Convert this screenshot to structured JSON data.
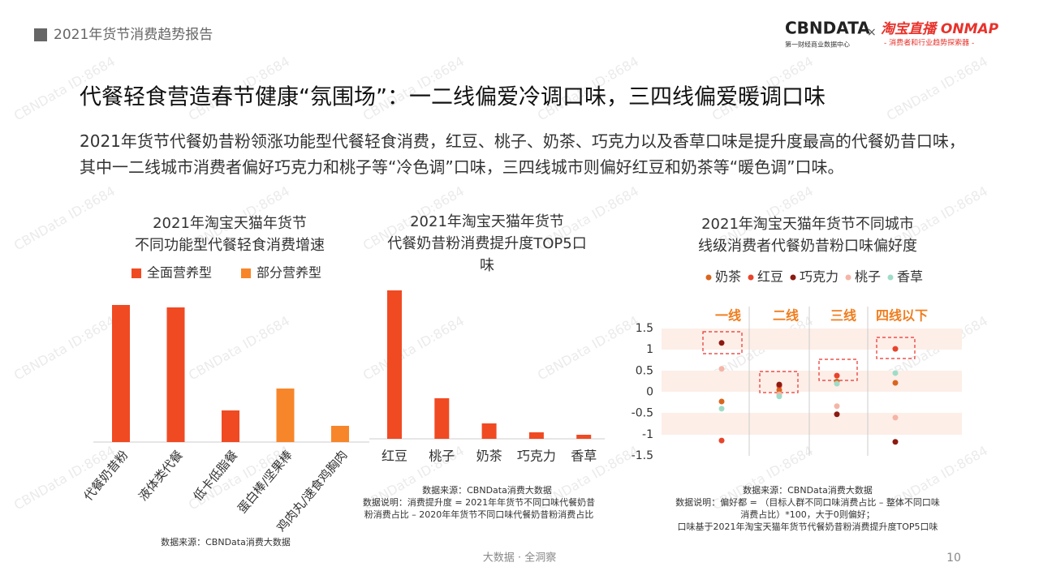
{
  "header": {
    "title": "2021年货节消费趋势报告",
    "logo_left": "CBNDATA",
    "logo_left_sub": "第一财经商业数据中心",
    "logo_sep": "×",
    "logo_right": "淘宝直播 ONMAP",
    "logo_right_sub": "- 消费者和行业趋势探索器 -"
  },
  "headline": "代餐轻食营造春节健康“氛围场”：一二线偏爱冷调口味，三四线偏爱暖调口味",
  "summary": "2021年货节代餐奶昔粉领涨功能型代餐轻食消费，红豆、桃子、奶茶、巧克力以及香草口味是提升度最高的代餐奶昔口味，其中一二线城市消费者偏好巧克力和桃子等“冷色调”口味，三四线城市则偏好红豆和奶茶等“暖色调”口味。",
  "watermark": "CBNData ID:8684",
  "footer": "大数据 · 全洞察",
  "page_number": "10",
  "chart_data": [
    {
      "type": "bar",
      "title": [
        "2021年淘宝天猫年货节",
        "不同功能型代餐轻食消费增速"
      ],
      "categories": [
        "代餐奶昔粉",
        "液体类代餐",
        "低卡低脂餐",
        "蛋白棒/坚果棒",
        "鸡肉丸/速食鸡胸肉"
      ],
      "series": [
        {
          "name": "全面营养型",
          "color": "#f04a23",
          "values": [
            169,
            166,
            39,
            null,
            null
          ]
        },
        {
          "name": "部分营养型",
          "color": "#f7862a",
          "values": [
            null,
            null,
            null,
            66,
            20
          ]
        }
      ],
      "ylim": [
        0,
        180
      ],
      "source": "数据来源：CBNData消费大数据"
    },
    {
      "type": "bar",
      "title": [
        "2021年淘宝天猫年货节",
        "代餐奶昔粉消费提升度TOP5口",
        "味"
      ],
      "categories": [
        "红豆",
        "桃子",
        "奶茶",
        "巧克力",
        "香草"
      ],
      "series": [
        {
          "name": "消费提升度",
          "color": "#f04a23",
          "values": [
            183,
            50,
            19,
            8,
            5
          ]
        }
      ],
      "ylim": [
        0,
        190
      ],
      "source": "数据来源：CBNData消费大数据",
      "note": [
        "数据说明：消费提升度 = 2021年年货节不同口味代餐奶昔",
        "粉消费占比 – 2020年年货节不同口味代餐奶昔粉消费占比"
      ]
    },
    {
      "type": "scatter",
      "title": [
        "2021年淘宝天猫年货节不同城市",
        "线级消费者代餐奶昔粉口味偏好度"
      ],
      "categories": [
        "一线",
        "二线",
        "三线",
        "四线以下"
      ],
      "series": [
        {
          "name": "奶茶",
          "color": "#d9661f",
          "values": [
            -0.22,
            0.05,
            0.25,
            0.22
          ]
        },
        {
          "name": "红豆",
          "color": "#e8432b",
          "values": [
            -1.14,
            0.15,
            0.39,
            1.02
          ]
        },
        {
          "name": "巧克力",
          "color": "#8b1a10",
          "values": [
            1.16,
            0.18,
            -0.52,
            -1.17
          ]
        },
        {
          "name": "桃子",
          "color": "#f5b5a6",
          "values": [
            0.55,
            -0.05,
            -0.33,
            -0.6
          ]
        },
        {
          "name": "香草",
          "color": "#9fdcc8",
          "values": [
            -0.39,
            -0.1,
            0.2,
            0.45
          ]
        }
      ],
      "ylim": [
        -1.5,
        1.5
      ],
      "yticks": [
        1.5,
        1,
        0.5,
        0,
        -0.5,
        -1,
        -1.5
      ],
      "source": "数据来源：CBNData消费大数据",
      "note": [
        "数据说明：偏好都 = （目标人群不同口味消费占比 – 整体不同口味",
        "消费占比）*100，大于0则偏好；",
        "口味基于2021年淘宝天猫年货节代餐奶昔粉消费提升度TOP5口味"
      ]
    }
  ]
}
